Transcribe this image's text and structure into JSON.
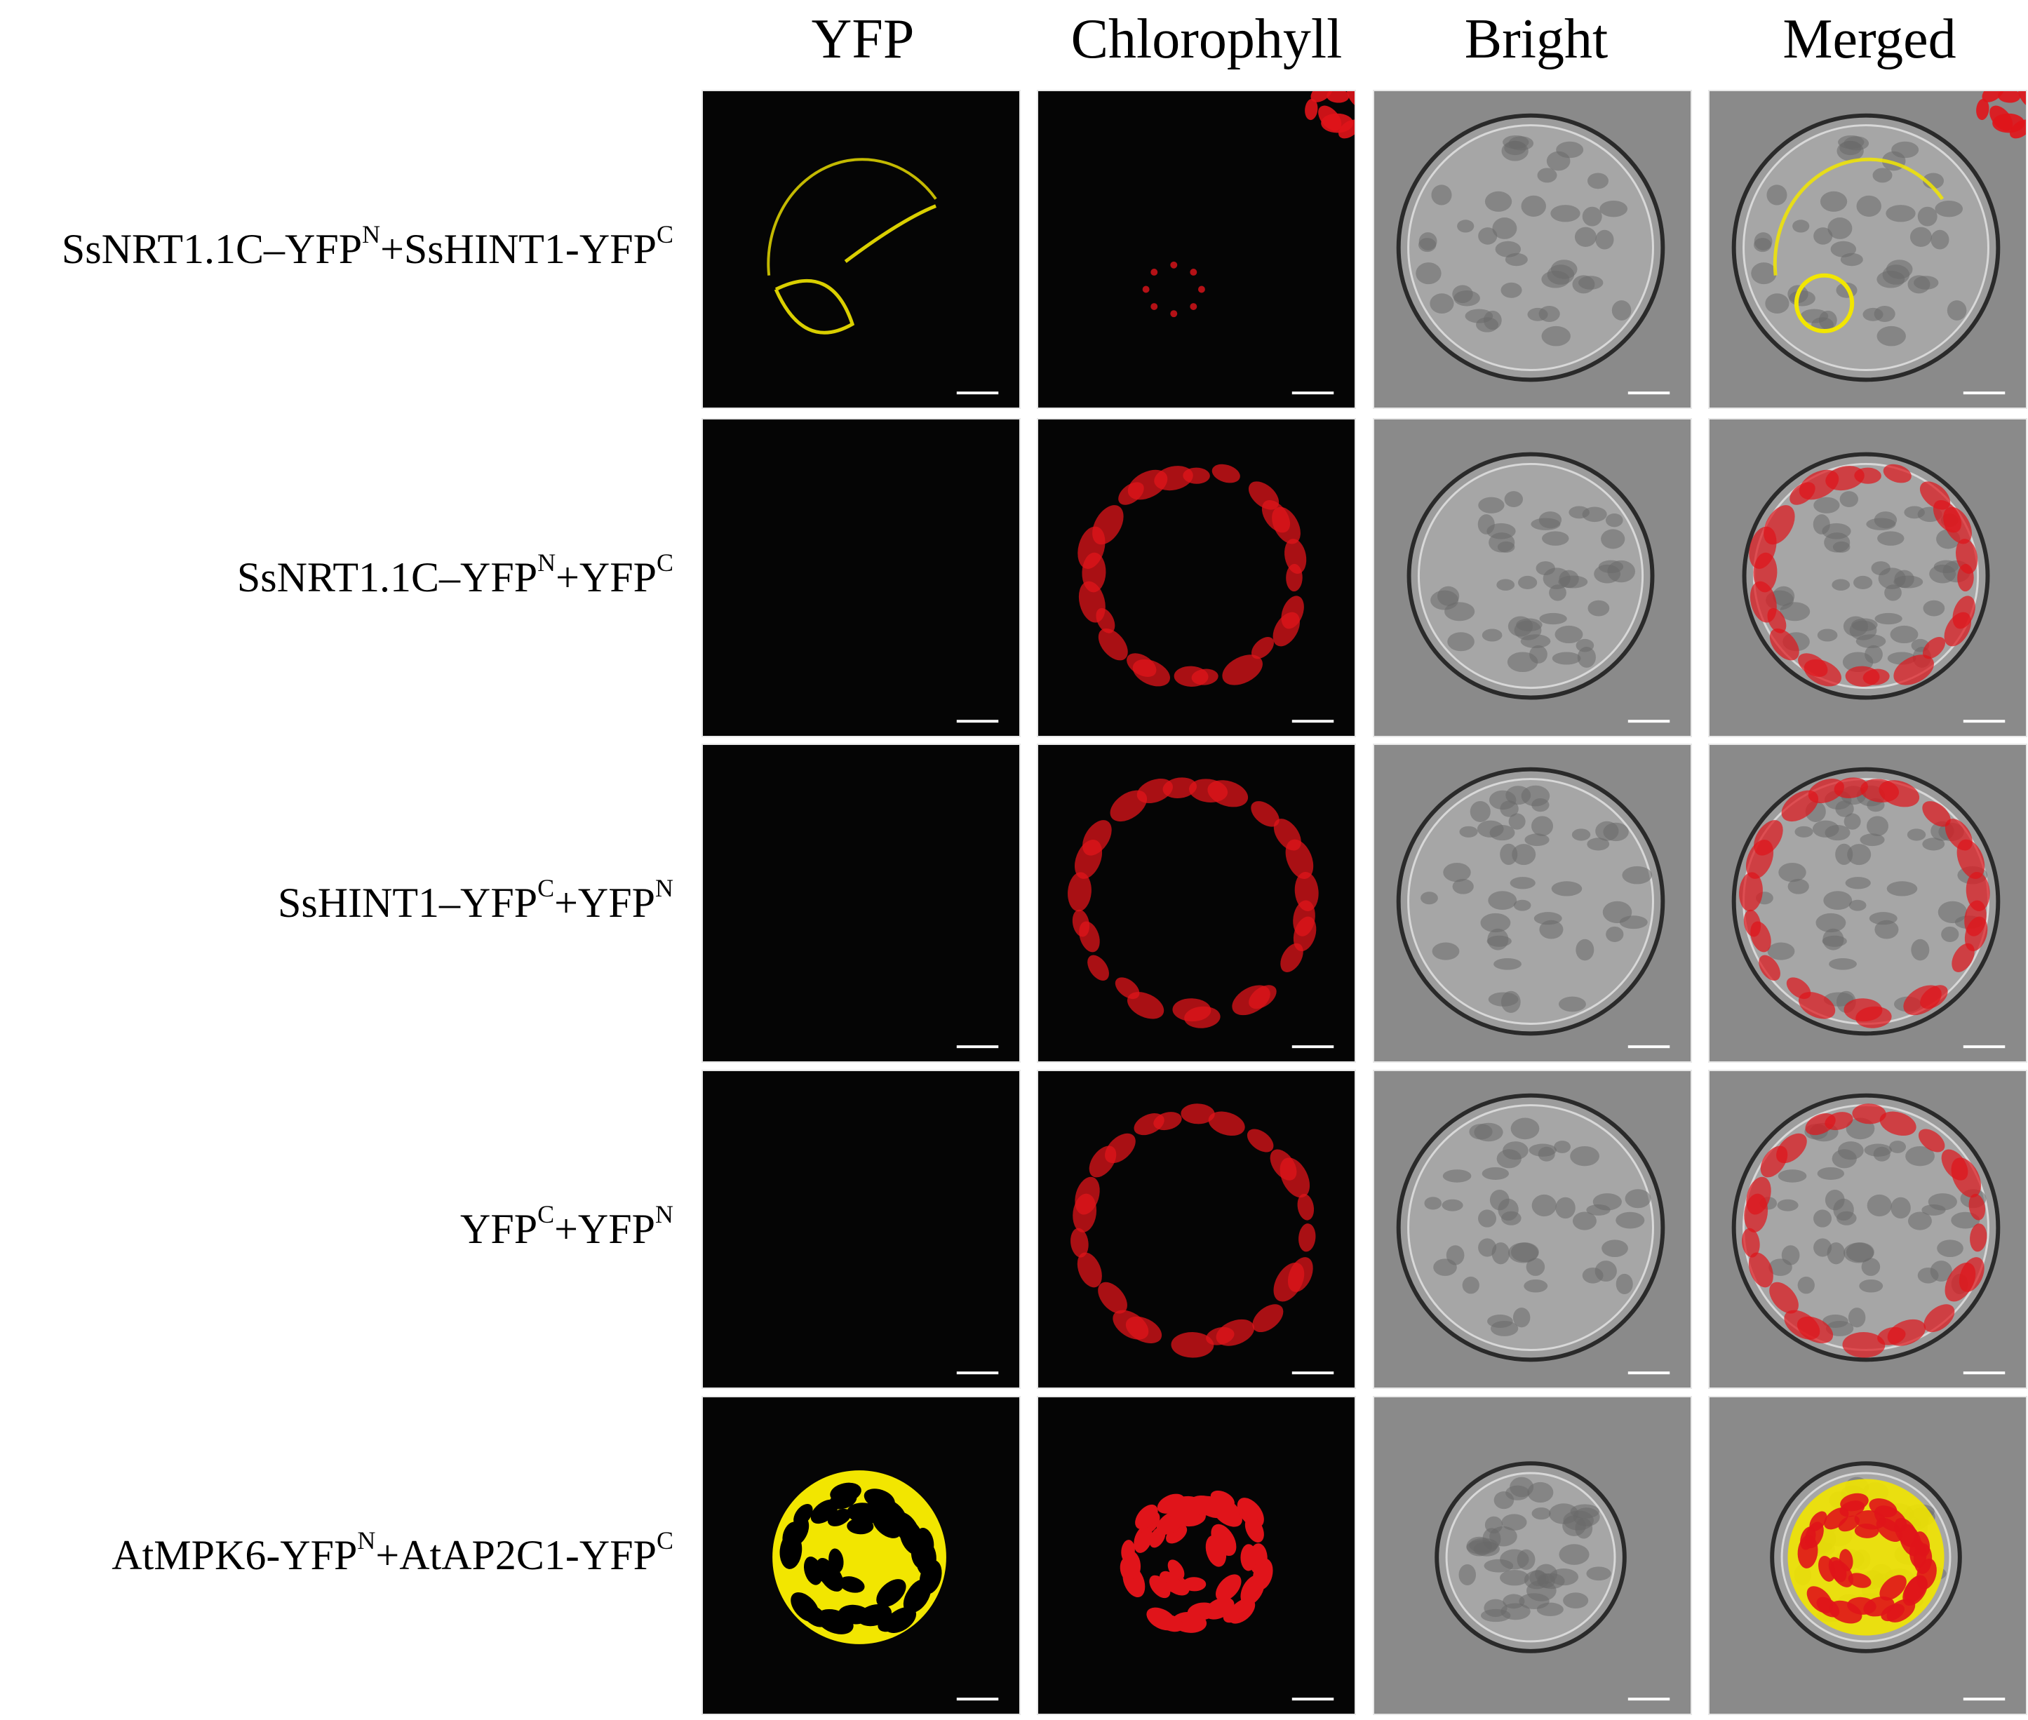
{
  "columns": [
    "YFP",
    "Chlorophyll",
    "Bright",
    "Merged"
  ],
  "rows": [
    {
      "label_parts": [
        {
          "t": "SsNRT1.1C–YFP",
          "sup": false
        },
        {
          "t": "N",
          "sup": true
        },
        {
          "t": "+SsHINT1-YFP",
          "sup": false
        },
        {
          "t": "C",
          "sup": true
        }
      ],
      "yfp": "ring-partial",
      "chlorophyll": "sparse",
      "cell_size": "large"
    },
    {
      "label_parts": [
        {
          "t": "SsNRT1.1C–YFP",
          "sup": false
        },
        {
          "t": "N",
          "sup": true
        },
        {
          "t": "+YFP",
          "sup": false
        },
        {
          "t": "C",
          "sup": true
        }
      ],
      "yfp": "none",
      "chlorophyll": "ring",
      "cell_size": "medium"
    },
    {
      "label_parts": [
        {
          "t": "SsHINT1–YFP",
          "sup": false
        },
        {
          "t": "C",
          "sup": true
        },
        {
          "t": "+YFP",
          "sup": false
        },
        {
          "t": "N",
          "sup": true
        }
      ],
      "yfp": "none",
      "chlorophyll": "ring",
      "cell_size": "large"
    },
    {
      "label_parts": [
        {
          "t": "YFP",
          "sup": false
        },
        {
          "t": "C",
          "sup": true
        },
        {
          "t": "+YFP",
          "sup": false
        },
        {
          "t": "N",
          "sup": true
        }
      ],
      "yfp": "none",
      "chlorophyll": "ring",
      "cell_size": "large"
    },
    {
      "label_parts": [
        {
          "t": "AtMPK6-YFP",
          "sup": false
        },
        {
          "t": "N",
          "sup": true
        },
        {
          "t": "+AtAP2C1-YFP",
          "sup": false
        },
        {
          "t": "C",
          "sup": true
        }
      ],
      "yfp": "full",
      "chlorophyll": "dense",
      "cell_size": "small"
    }
  ],
  "colors": {
    "yfp": "#f2e600",
    "chlorophyll": "#e0141a",
    "dark_bg": "#050505",
    "bright_bg": "#8a8a8a"
  }
}
